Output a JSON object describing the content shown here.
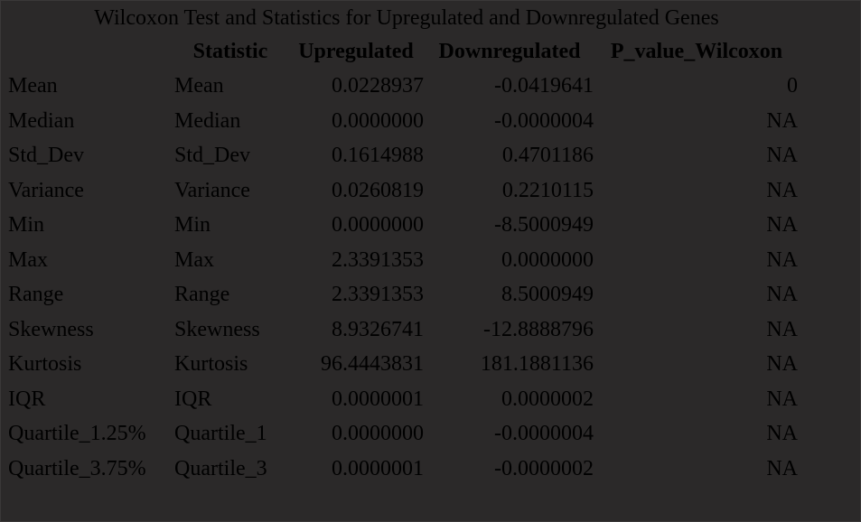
{
  "title": "Wilcoxon Test and Statistics for Upregulated and Downregulated Genes",
  "columns": [
    "",
    "Statistic",
    "Upregulated",
    "Downregulated",
    "P_value_Wilcoxon"
  ],
  "rows": [
    {
      "name": "Mean",
      "statistic": "Mean",
      "up": "0.0228937",
      "down": "-0.0419641",
      "p": "0"
    },
    {
      "name": "Median",
      "statistic": "Median",
      "up": "0.0000000",
      "down": "-0.0000004",
      "p": "NA"
    },
    {
      "name": "Std_Dev",
      "statistic": "Std_Dev",
      "up": "0.1614988",
      "down": "0.4701186",
      "p": "NA"
    },
    {
      "name": "Variance",
      "statistic": "Variance",
      "up": "0.0260819",
      "down": "0.2210115",
      "p": "NA"
    },
    {
      "name": "Min",
      "statistic": "Min",
      "up": "0.0000000",
      "down": "-8.5000949",
      "p": "NA"
    },
    {
      "name": "Max",
      "statistic": "Max",
      "up": "2.3391353",
      "down": "0.0000000",
      "p": "NA"
    },
    {
      "name": "Range",
      "statistic": "Range",
      "up": "2.3391353",
      "down": "8.5000949",
      "p": "NA"
    },
    {
      "name": "Skewness",
      "statistic": "Skewness",
      "up": "8.9326741",
      "down": "-12.8888796",
      "p": "NA"
    },
    {
      "name": "Kurtosis",
      "statistic": "Kurtosis",
      "up": "96.4443831",
      "down": "181.1881136",
      "p": "NA"
    },
    {
      "name": "IQR",
      "statistic": "IQR",
      "up": "0.0000001",
      "down": "0.0000002",
      "p": "NA"
    },
    {
      "name": "Quartile_1.25%",
      "statistic": "Quartile_1",
      "up": "0.0000000",
      "down": "-0.0000004",
      "p": "NA"
    },
    {
      "name": "Quartile_3.75%",
      "statistic": "Quartile_3",
      "up": "0.0000001",
      "down": "-0.0000002",
      "p": "NA"
    }
  ],
  "colors": {
    "background": "#2b2929",
    "text": "#000000"
  }
}
